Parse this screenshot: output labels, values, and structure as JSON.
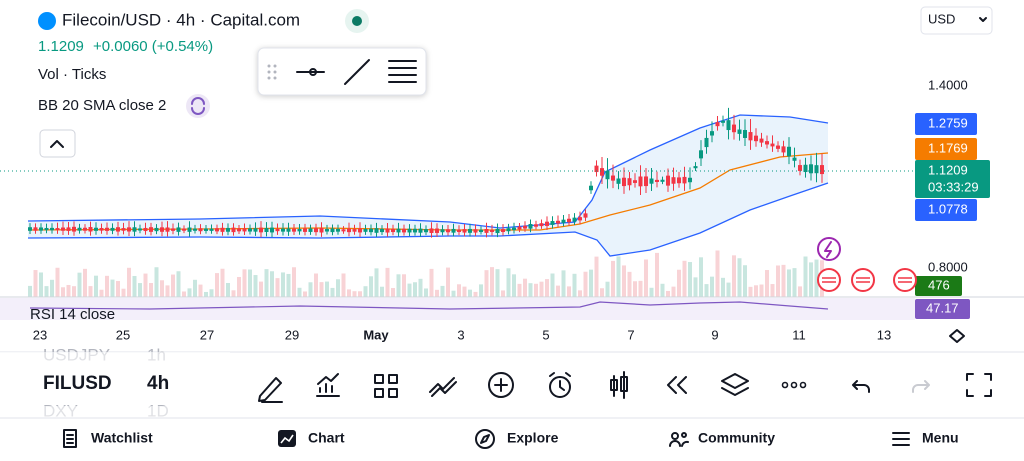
{
  "header": {
    "symbol": "Filecoin/USD · 4h · Capital.com",
    "price": "1.1209",
    "change": "+0.0060 (+0.54%)",
    "currency": "USD"
  },
  "indicators": {
    "volume": "Vol · Ticks",
    "bollinger": "BB 20 SMA close 2",
    "rsi": "RSI 14 close"
  },
  "price_axis": {
    "labels": [
      "1.4000",
      "0.8000"
    ],
    "upper_band": "1.2759",
    "middle_band": "1.1769",
    "last_price": "1.1209",
    "countdown": "03:33:29",
    "lower_band": "1.0778",
    "volume": "476",
    "rsi": "47.17"
  },
  "time_axis": [
    "23",
    "25",
    "27",
    "29",
    "May",
    "3",
    "5",
    "7",
    "9",
    "11",
    "13"
  ],
  "watchlist": [
    {
      "symbol": "USDJPY",
      "interval": "1h"
    },
    {
      "symbol": "FILUSD",
      "interval": "4h"
    },
    {
      "symbol": "DXY",
      "interval": "1D"
    }
  ],
  "nav": [
    "Watchlist",
    "Chart",
    "Explore",
    "Community",
    "Menu"
  ]
}
